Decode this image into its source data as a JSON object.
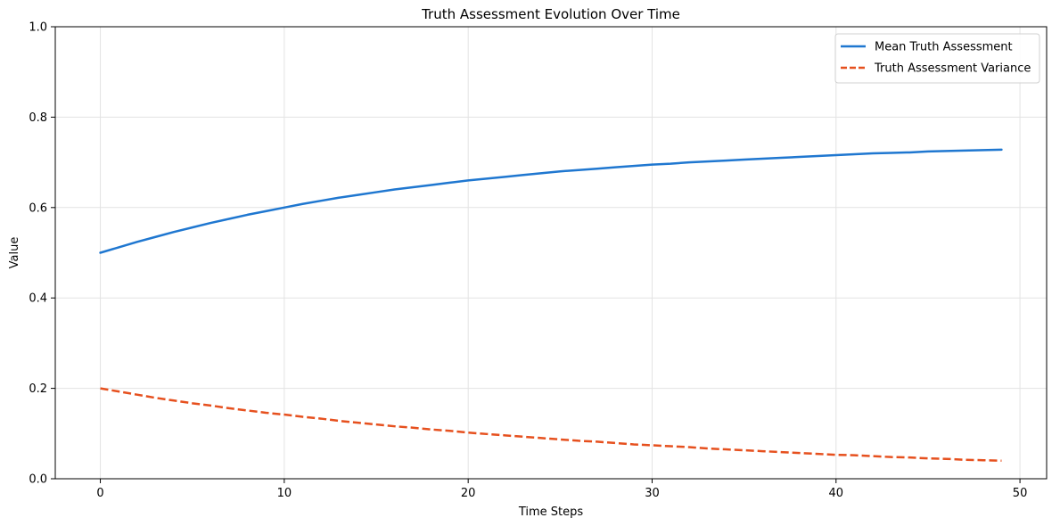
{
  "chart_data": {
    "type": "line",
    "title": "Truth Assessment Evolution Over Time",
    "xlabel": "Time Steps",
    "ylabel": "Value",
    "xlim": [
      -2.45,
      51.45
    ],
    "ylim": [
      0,
      1
    ],
    "xticks": [
      0,
      10,
      20,
      30,
      40,
      50
    ],
    "xtick_labels": [
      "0",
      "10",
      "20",
      "30",
      "40",
      "50"
    ],
    "yticks": [
      0,
      0.2,
      0.4,
      0.6,
      0.8,
      1.0
    ],
    "ytick_labels": [
      "0.0",
      "0.2",
      "0.4",
      "0.6",
      "0.8",
      "1.0"
    ],
    "grid": true,
    "legend_position": "upper right",
    "x": [
      0,
      1,
      2,
      3,
      4,
      5,
      6,
      7,
      8,
      9,
      10,
      11,
      12,
      13,
      14,
      15,
      16,
      17,
      18,
      19,
      20,
      21,
      22,
      23,
      24,
      25,
      26,
      27,
      28,
      29,
      30,
      31,
      32,
      33,
      34,
      35,
      36,
      37,
      38,
      39,
      40,
      41,
      42,
      43,
      44,
      45,
      46,
      47,
      48,
      49
    ],
    "series": [
      {
        "name": "Mean Truth Assessment",
        "color": "#1f77d0",
        "style": "solid",
        "values": [
          0.5,
          0.512,
          0.524,
          0.535,
          0.546,
          0.556,
          0.566,
          0.575,
          0.584,
          0.592,
          0.6,
          0.608,
          0.615,
          0.622,
          0.628,
          0.634,
          0.64,
          0.645,
          0.65,
          0.655,
          0.66,
          0.664,
          0.668,
          0.672,
          0.676,
          0.68,
          0.683,
          0.686,
          0.689,
          0.692,
          0.695,
          0.697,
          0.7,
          0.702,
          0.704,
          0.706,
          0.708,
          0.71,
          0.712,
          0.714,
          0.716,
          0.718,
          0.72,
          0.721,
          0.722,
          0.724,
          0.725,
          0.726,
          0.727,
          0.728
        ]
      },
      {
        "name": "Truth Assessment Variance",
        "color": "#e6501e",
        "style": "dashed",
        "values": [
          0.2,
          0.193,
          0.186,
          0.179,
          0.173,
          0.167,
          0.162,
          0.156,
          0.151,
          0.146,
          0.142,
          0.137,
          0.133,
          0.128,
          0.124,
          0.12,
          0.116,
          0.113,
          0.109,
          0.106,
          0.102,
          0.099,
          0.096,
          0.093,
          0.09,
          0.087,
          0.084,
          0.082,
          0.079,
          0.076,
          0.074,
          0.072,
          0.07,
          0.067,
          0.065,
          0.063,
          0.061,
          0.059,
          0.057,
          0.055,
          0.053,
          0.052,
          0.05,
          0.048,
          0.047,
          0.045,
          0.044,
          0.042,
          0.041,
          0.04
        ]
      }
    ]
  }
}
